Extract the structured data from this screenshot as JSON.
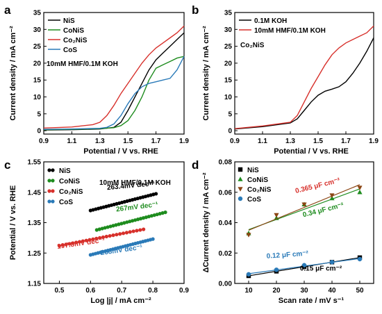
{
  "chart_data": [
    {
      "panel": "a",
      "type": "line",
      "xlabel": "Potential / V vs. RHE",
      "ylabel": "Current density / mA cm⁻²",
      "xlim": [
        0.9,
        1.9
      ],
      "ylim": [
        -1,
        35
      ],
      "xticks": [
        0.9,
        1.1,
        1.3,
        1.5,
        1.7,
        1.9
      ],
      "yticks": [
        0,
        5,
        10,
        15,
        20,
        25,
        30,
        35
      ],
      "annotation": "10mM HMF/0.1M KOH",
      "legend_position": "top-left",
      "series": [
        {
          "name": "NiS",
          "color": "#000000",
          "points": [
            [
              0.9,
              0.2
            ],
            [
              1.1,
              0.3
            ],
            [
              1.3,
              0.5
            ],
            [
              1.4,
              1.0
            ],
            [
              1.45,
              2.5
            ],
            [
              1.5,
              6
            ],
            [
              1.55,
              10
            ],
            [
              1.6,
              14
            ],
            [
              1.65,
              18
            ],
            [
              1.7,
              21
            ],
            [
              1.75,
              23
            ],
            [
              1.8,
              25
            ],
            [
              1.85,
              27
            ],
            [
              1.9,
              29
            ]
          ]
        },
        {
          "name": "CoNiS",
          "color": "#1e8c1e",
          "points": [
            [
              0.9,
              0.3
            ],
            [
              1.1,
              0.4
            ],
            [
              1.3,
              0.6
            ],
            [
              1.4,
              0.9
            ],
            [
              1.45,
              1.5
            ],
            [
              1.5,
              3
            ],
            [
              1.55,
              6
            ],
            [
              1.6,
              10
            ],
            [
              1.65,
              15
            ],
            [
              1.7,
              18.5
            ],
            [
              1.75,
              19.5
            ],
            [
              1.8,
              20.5
            ],
            [
              1.85,
              21.5
            ],
            [
              1.9,
              22
            ]
          ]
        },
        {
          "name": "Co₂NiS",
          "color": "#d7302b",
          "points": [
            [
              0.9,
              0.8
            ],
            [
              1.1,
              1.1
            ],
            [
              1.25,
              1.8
            ],
            [
              1.3,
              2.5
            ],
            [
              1.35,
              4.5
            ],
            [
              1.4,
              7.5
            ],
            [
              1.45,
              11
            ],
            [
              1.5,
              14
            ],
            [
              1.55,
              17
            ],
            [
              1.6,
              20
            ],
            [
              1.65,
              22.5
            ],
            [
              1.7,
              24.5
            ],
            [
              1.75,
              26
            ],
            [
              1.8,
              27.5
            ],
            [
              1.85,
              29
            ],
            [
              1.9,
              31
            ]
          ]
        },
        {
          "name": "CoS",
          "color": "#2a7ab8",
          "points": [
            [
              0.9,
              0.4
            ],
            [
              1.1,
              0.5
            ],
            [
              1.3,
              0.7
            ],
            [
              1.35,
              1.0
            ],
            [
              1.4,
              2.0
            ],
            [
              1.45,
              4.5
            ],
            [
              1.5,
              8
            ],
            [
              1.55,
              11
            ],
            [
              1.6,
              13
            ],
            [
              1.65,
              14
            ],
            [
              1.7,
              14.5
            ],
            [
              1.75,
              15
            ],
            [
              1.8,
              15.5
            ],
            [
              1.85,
              18
            ],
            [
              1.9,
              22
            ]
          ]
        }
      ]
    },
    {
      "panel": "b",
      "type": "line",
      "xlabel": "Potential / V vs. RHE",
      "ylabel": "Current density / mA cm⁻²",
      "xlim": [
        0.9,
        1.9
      ],
      "ylim": [
        -1,
        35
      ],
      "xticks": [
        0.9,
        1.1,
        1.3,
        1.5,
        1.7,
        1.9
      ],
      "yticks": [
        0,
        5,
        10,
        15,
        20,
        25,
        30,
        35
      ],
      "annotation": "Co₂NiS",
      "legend_position": "top-left",
      "series": [
        {
          "name": "0.1M KOH",
          "color": "#000000",
          "points": [
            [
              0.9,
              0.5
            ],
            [
              1.1,
              1.2
            ],
            [
              1.3,
              2.3
            ],
            [
              1.35,
              3.5
            ],
            [
              1.4,
              6
            ],
            [
              1.45,
              8.5
            ],
            [
              1.5,
              10.5
            ],
            [
              1.55,
              11.7
            ],
            [
              1.6,
              12.3
            ],
            [
              1.65,
              13
            ],
            [
              1.7,
              14.5
            ],
            [
              1.75,
              17
            ],
            [
              1.8,
              20
            ],
            [
              1.85,
              23.5
            ],
            [
              1.9,
              27.5
            ]
          ]
        },
        {
          "name": "10mM HMF/0.1M KOH",
          "color": "#d7302b",
          "points": [
            [
              0.9,
              0.6
            ],
            [
              1.1,
              1.4
            ],
            [
              1.3,
              2.5
            ],
            [
              1.35,
              4.5
            ],
            [
              1.4,
              8.5
            ],
            [
              1.45,
              12.5
            ],
            [
              1.5,
              16
            ],
            [
              1.55,
              19.5
            ],
            [
              1.6,
              22.5
            ],
            [
              1.65,
              24.5
            ],
            [
              1.7,
              26
            ],
            [
              1.75,
              27
            ],
            [
              1.8,
              28
            ],
            [
              1.85,
              29
            ],
            [
              1.9,
              31
            ]
          ]
        }
      ]
    },
    {
      "panel": "c",
      "type": "scatter",
      "xlabel": "Log |j| / mA cm⁻²",
      "ylabel": "Potential / V vs. RHE",
      "xlim": [
        0.45,
        0.9
      ],
      "ylim": [
        1.15,
        1.55
      ],
      "xticks": [
        0.5,
        0.6,
        0.7,
        0.8,
        0.9
      ],
      "yticks": [
        1.15,
        1.25,
        1.35,
        1.45,
        1.55
      ],
      "annotation": "10mM HMF/0.1M KOH",
      "legend_position": "top-left",
      "series": [
        {
          "name": "NiS",
          "color": "#000000",
          "x_range": [
            0.6,
            0.81
          ],
          "y_range": [
            1.39,
            1.445
          ],
          "slope_label": "263.4mV dec⁻¹"
        },
        {
          "name": "CoNiS",
          "color": "#1e8c1e",
          "x_range": [
            0.62,
            0.84
          ],
          "y_range": [
            1.326,
            1.384
          ],
          "slope_label": "267mV dec⁻¹"
        },
        {
          "name": "Co₂NiS",
          "color": "#d7302b",
          "x_range": [
            0.5,
            0.77
          ],
          "y_range": [
            1.274,
            1.328
          ],
          "slope_label": "197.8mV dec⁻¹"
        },
        {
          "name": "CoS",
          "color": "#2a7ab8",
          "x_range": [
            0.6,
            0.8
          ],
          "y_range": [
            1.244,
            1.296
          ],
          "slope_label": "268mV dec⁻¹"
        }
      ]
    },
    {
      "panel": "d",
      "type": "scatter",
      "xlabel": "Scan rate / mV s⁻¹",
      "ylabel": "ΔCurrent density / mA cm⁻²",
      "xlim": [
        5,
        55
      ],
      "ylim": [
        0,
        0.08
      ],
      "xticks": [
        10,
        20,
        30,
        40,
        50
      ],
      "yticks": [
        0.0,
        0.02,
        0.04,
        0.06,
        0.08
      ],
      "legend_position": "top-left",
      "series": [
        {
          "name": "NiS",
          "color": "#000000",
          "marker": "square",
          "x": [
            10,
            20,
            30,
            40,
            50
          ],
          "y": [
            0.005,
            0.008,
            0.011,
            0.014,
            0.017
          ],
          "capacitance_label": "0.15 μF cm⁻²"
        },
        {
          "name": "CoNiS",
          "color": "#1e8c1e",
          "marker": "triangle-up",
          "x": [
            10,
            20,
            30,
            40,
            50
          ],
          "y": [
            0.033,
            0.043,
            0.052,
            0.056,
            0.06
          ],
          "capacitance_label": "0.34 μF cm⁻²"
        },
        {
          "name": "Co₂NiS",
          "color": "#8b4513",
          "marker": "triangle-down",
          "x": [
            10,
            20,
            30,
            40,
            50
          ],
          "y": [
            0.032,
            0.045,
            0.052,
            0.058,
            0.063
          ],
          "capacitance_label": "0.365 μF cm⁻²"
        },
        {
          "name": "CoS",
          "color": "#2a7ab8",
          "marker": "circle",
          "x": [
            10,
            20,
            30,
            40,
            50
          ],
          "y": [
            0.006,
            0.009,
            0.012,
            0.014,
            0.016
          ],
          "capacitance_label": "0.12 μF cm⁻²"
        }
      ]
    }
  ]
}
